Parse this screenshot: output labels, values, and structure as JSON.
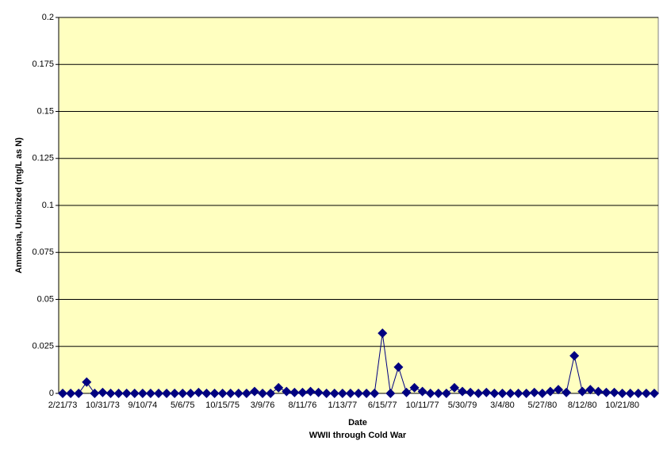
{
  "chart_data": {
    "type": "line",
    "x_label": "Date",
    "subtitle": "WWII through Cold War",
    "y_label": "Ammonia, Unionized (mg/L as N)",
    "categories": [
      "2/21/73",
      null,
      null,
      null,
      null,
      "10/31/73",
      null,
      null,
      null,
      null,
      "9/10/74",
      null,
      null,
      null,
      null,
      "5/6/75",
      null,
      null,
      null,
      null,
      "10/15/75",
      null,
      null,
      null,
      null,
      "3/9/76",
      null,
      null,
      null,
      null,
      "8/11/76",
      null,
      null,
      null,
      null,
      "1/13/77",
      null,
      null,
      null,
      null,
      "6/15/77",
      null,
      null,
      null,
      null,
      "10/11/77",
      null,
      null,
      null,
      null,
      "5/30/79",
      null,
      null,
      null,
      null,
      "3/4/80",
      null,
      null,
      null,
      null,
      "5/27/80",
      null,
      null,
      null,
      null,
      "8/12/80",
      null,
      null,
      null,
      null,
      "10/21/80",
      null,
      null,
      null,
      null
    ],
    "series": [
      {
        "name": "Ammonia, Unionized",
        "color": "#000080",
        "values": [
          0,
          0,
          0,
          0.006,
          0,
          0.0005,
          0,
          0,
          0,
          0,
          0,
          0,
          0,
          0,
          0,
          0,
          0,
          0.0005,
          0,
          0,
          0,
          0,
          0,
          0,
          0.001,
          0,
          0,
          0.003,
          0.001,
          0.0005,
          0.0005,
          0.001,
          0.0005,
          0,
          0,
          0,
          0,
          0,
          0,
          0,
          0.032,
          0,
          0.014,
          0.0005,
          0.003,
          0.001,
          0,
          0,
          0,
          0.003,
          0.001,
          0.0005,
          0,
          0.0005,
          0,
          0,
          0,
          0,
          0,
          0.0005,
          0,
          0.001,
          0.002,
          0.0005,
          0.02,
          0.001,
          0.002,
          0.001,
          0.0005,
          0.0005,
          0,
          0,
          0,
          0,
          0
        ]
      }
    ],
    "ylim": [
      0,
      0.2
    ],
    "yticks": [
      0,
      0.025,
      0.05,
      0.075,
      0.1,
      0.125,
      0.15,
      0.175,
      0.2
    ],
    "grid": true,
    "plot_background": "#ffffc0"
  }
}
